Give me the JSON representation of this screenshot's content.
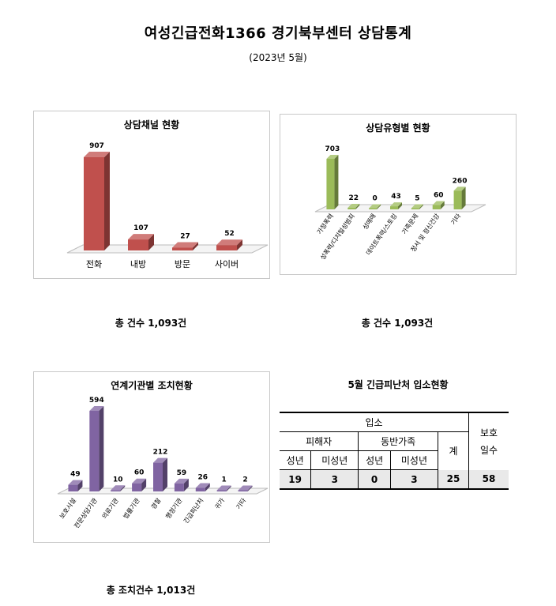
{
  "header": {
    "title": "여성긴급전화1366 경기북부센터 상담통계",
    "subtitle": "(2023년 5월)"
  },
  "chart_data": [
    {
      "type": "bar",
      "title": "상담채널 현황",
      "categories": [
        "전화",
        "내방",
        "방문",
        "사이버"
      ],
      "values": [
        907,
        107,
        27,
        52
      ],
      "color": "#c0504d",
      "ylim": [
        0,
        907
      ],
      "total_text": "총 건수 1,093건"
    },
    {
      "type": "bar",
      "title": "상담유형별 현황",
      "categories": [
        "가정폭력",
        "성폭력/디지털성범죄",
        "성매매",
        "데이트폭력/스토킹",
        "가족문제",
        "정서 및 정신건강",
        "기타"
      ],
      "values": [
        703,
        22,
        0,
        43,
        5,
        60,
        260
      ],
      "color": "#9bbb59",
      "ylim": [
        0,
        703
      ],
      "total_text": "총 건수 1,093건"
    },
    {
      "type": "bar",
      "title": "연계기관별 조치현황",
      "categories": [
        "보호시설",
        "전문상담기관",
        "의료기관",
        "법률기관",
        "경찰",
        "행정기관",
        "긴급피난처",
        "귀가",
        "기타"
      ],
      "values": [
        49,
        594,
        10,
        60,
        212,
        59,
        26,
        1,
        2
      ],
      "color": "#8064a2",
      "ylim": [
        0,
        594
      ],
      "total_text": "총 조치건수 1,013건"
    }
  ],
  "shelter_table": {
    "title": "5월 긴급피난처 입소현황",
    "header_top": "입소",
    "header_group1": "피해자",
    "header_group2": "동반가족",
    "header_total": "계",
    "header_days": "보호\n일수",
    "sub_headers": [
      "성년",
      "미성년",
      "성년",
      "미성년"
    ],
    "values": [
      "19",
      "3",
      "0",
      "3",
      "25",
      "58"
    ]
  }
}
